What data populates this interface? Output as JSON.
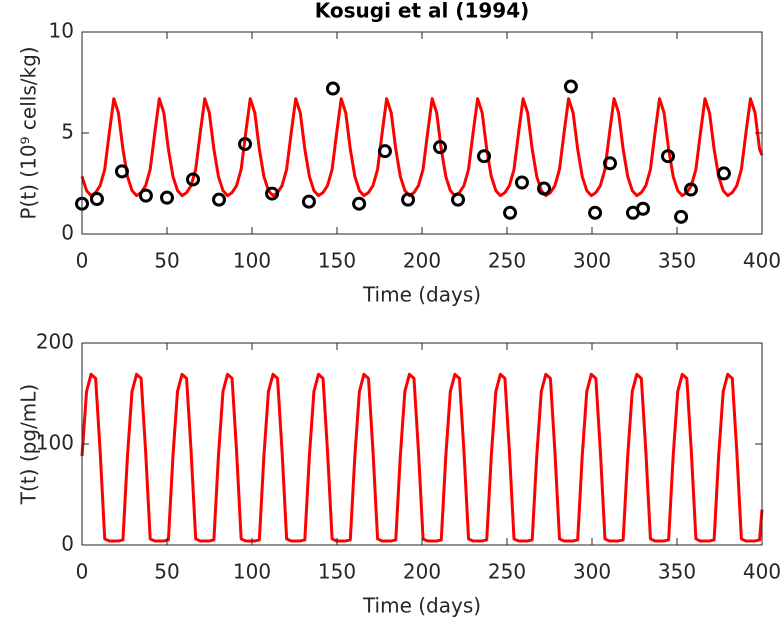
{
  "chart_data": [
    {
      "type": "line",
      "title": "Kosugi et al (1994)",
      "xlabel": "Time (days)",
      "ylabel": "P(t) (10⁹ cells/kg)",
      "xlim": [
        0,
        400
      ],
      "xticks": [
        0,
        50,
        100,
        150,
        200,
        250,
        300,
        350,
        400
      ],
      "ylim": [
        0,
        10
      ],
      "yticks": [
        0,
        5,
        10
      ],
      "x": [
        0,
        2.675,
        5.35,
        8.025,
        10.7,
        13.375,
        16.05,
        18.725,
        21.4,
        24.075,
        26.75,
        29.425,
        32.1,
        34.775,
        37.45,
        40.125,
        42.8,
        45.475,
        48.15,
        50.825,
        53.5,
        56.175,
        58.85,
        61.525,
        64.2,
        66.875,
        69.55,
        72.225,
        74.9,
        77.575,
        80.25,
        82.925,
        85.6,
        88.275,
        90.95,
        93.625,
        96.3,
        98.975,
        101.65,
        104.325,
        107,
        109.675,
        112.35,
        115.025,
        117.7,
        120.375,
        123.05,
        125.725,
        128.4,
        131.075,
        133.75,
        136.425,
        139.1,
        141.775,
        144.45,
        147.125,
        149.8,
        152.475,
        155.15,
        157.825,
        160.5,
        163.175,
        165.85,
        168.525,
        171.2,
        173.875,
        176.55,
        179.225,
        181.9,
        184.575,
        187.25,
        189.925,
        192.6,
        195.275,
        197.95,
        200.625,
        203.3,
        205.975,
        208.65,
        211.325,
        214,
        216.675,
        219.35,
        222.025,
        224.7,
        227.375,
        230.05,
        232.725,
        235.4,
        238.075,
        240.75,
        243.425,
        246.1,
        248.775,
        251.45,
        254.125,
        256.8,
        259.475,
        262.15,
        264.825,
        267.5,
        270.175,
        272.85,
        275.525,
        278.2,
        280.875,
        283.55,
        286.225,
        288.9,
        291.575,
        294.25,
        296.925,
        299.6,
        302.275,
        304.95,
        307.625,
        310.3,
        312.975,
        315.65,
        318.325,
        321,
        323.675,
        326.35,
        329.025,
        331.7,
        334.375,
        337.05,
        339.725,
        342.4,
        345.075,
        347.75,
        350.425,
        353.1,
        355.775,
        358.45,
        361.125,
        363.8,
        366.475,
        369.15,
        371.825,
        374.5,
        377.175,
        379.85,
        382.525,
        385.2,
        387.875,
        390.55,
        393.225,
        395.9,
        398.575,
        400
      ],
      "series": [
        {
          "color": "#ff0000",
          "values": [
            2.85,
            2.15,
            1.9,
            2.05,
            2.4,
            3.2,
            5.0,
            6.7,
            6.0,
            4.2,
            2.85,
            2.15,
            1.9,
            2.05,
            2.4,
            3.2,
            5.0,
            6.7,
            6.0,
            4.2,
            2.85,
            2.15,
            1.9,
            2.05,
            2.4,
            3.2,
            5.0,
            6.7,
            6.0,
            4.2,
            2.85,
            2.15,
            1.9,
            2.05,
            2.4,
            3.2,
            5.0,
            6.7,
            6.0,
            4.2,
            2.85,
            2.15,
            1.9,
            2.05,
            2.4,
            3.2,
            5.0,
            6.7,
            6.0,
            4.2,
            2.85,
            2.15,
            1.9,
            2.05,
            2.4,
            3.2,
            5.0,
            6.7,
            6.0,
            4.2,
            2.85,
            2.15,
            1.9,
            2.05,
            2.4,
            3.2,
            5.0,
            6.7,
            6.0,
            4.2,
            2.85,
            2.15,
            1.9,
            2.05,
            2.4,
            3.2,
            5.0,
            6.7,
            6.0,
            4.2,
            2.85,
            2.15,
            1.9,
            2.05,
            2.4,
            3.2,
            5.0,
            6.7,
            6.0,
            4.2,
            2.85,
            2.15,
            1.9,
            2.05,
            2.4,
            3.2,
            5.0,
            6.7,
            6.0,
            4.2,
            2.85,
            2.15,
            1.9,
            2.05,
            2.4,
            3.2,
            5.0,
            6.7,
            6.0,
            4.2,
            2.85,
            2.15,
            1.9,
            2.05,
            2.4,
            3.2,
            5.0,
            6.7,
            6.0,
            4.2,
            2.85,
            2.15,
            1.9,
            2.05,
            2.4,
            3.2,
            5.0,
            6.7,
            6.0,
            4.2,
            2.85,
            2.15,
            1.9,
            2.05,
            2.4,
            3.2,
            5.0,
            6.7,
            6.0,
            4.2,
            2.85,
            2.15,
            1.9,
            2.05,
            2.4,
            3.2,
            5.0,
            6.7,
            6.0,
            4.2,
            3.9
          ]
        },
        {
          "type": "scatter",
          "color": "#000000",
          "x": [
            0,
            8.8,
            23.5,
            37.6,
            50,
            65.3,
            80.6,
            95.9,
            111.8,
            133.5,
            147.6,
            163,
            178.2,
            191.8,
            210.6,
            221.2,
            236.5,
            251.8,
            258.8,
            271.8,
            287.6,
            301.8,
            310.6,
            324.1,
            330,
            344.7,
            352.4,
            358.2,
            377.6
          ],
          "values": [
            1.5,
            1.73,
            3.1,
            1.9,
            1.8,
            2.7,
            1.7,
            4.45,
            2.0,
            1.6,
            7.2,
            1.5,
            4.1,
            1.7,
            4.3,
            1.7,
            3.85,
            1.05,
            2.55,
            2.25,
            7.3,
            1.05,
            3.5,
            1.05,
            1.25,
            3.85,
            0.85,
            2.2,
            3.0
          ]
        }
      ]
    },
    {
      "type": "line",
      "xlabel": "Time (days)",
      "ylabel": "T(t) (pg/mL)",
      "xlim": [
        0,
        400
      ],
      "xticks": [
        0,
        50,
        100,
        150,
        200,
        250,
        300,
        350,
        400
      ],
      "ylim": [
        0,
        200
      ],
      "yticks": [
        0,
        100,
        200
      ],
      "x": [
        0,
        2.675,
        5.35,
        8.025,
        10.7,
        13.375,
        16.05,
        18.725,
        21.4,
        24.075,
        26.75,
        29.425,
        32.1,
        34.775,
        37.45,
        40.125,
        42.8,
        45.475,
        48.15,
        50.825,
        53.5,
        56.175,
        58.85,
        61.525,
        64.2,
        66.875,
        69.55,
        72.225,
        74.9,
        77.575,
        80.25,
        82.925,
        85.6,
        88.275,
        90.95,
        93.625,
        96.3,
        98.975,
        101.65,
        104.325,
        107,
        109.675,
        112.35,
        115.025,
        117.7,
        120.375,
        123.05,
        125.725,
        128.4,
        131.075,
        133.75,
        136.425,
        139.1,
        141.775,
        144.45,
        147.125,
        149.8,
        152.475,
        155.15,
        157.825,
        160.5,
        163.175,
        165.85,
        168.525,
        171.2,
        173.875,
        176.55,
        179.225,
        181.9,
        184.575,
        187.25,
        189.925,
        192.6,
        195.275,
        197.95,
        200.625,
        203.3,
        205.975,
        208.65,
        211.325,
        214,
        216.675,
        219.35,
        222.025,
        224.7,
        227.375,
        230.05,
        232.725,
        235.4,
        238.075,
        240.75,
        243.425,
        246.1,
        248.775,
        251.45,
        254.125,
        256.8,
        259.475,
        262.15,
        264.825,
        267.5,
        270.175,
        272.85,
        275.525,
        278.2,
        280.875,
        283.55,
        286.225,
        288.9,
        291.575,
        294.25,
        296.925,
        299.6,
        302.275,
        304.95,
        307.625,
        310.3,
        312.975,
        315.65,
        318.325,
        321,
        323.675,
        326.35,
        329.025,
        331.7,
        334.375,
        337.05,
        339.725,
        342.4,
        345.075,
        347.75,
        350.425,
        353.1,
        355.775,
        358.45,
        361.125,
        363.8,
        366.475,
        369.15,
        371.825,
        374.5,
        377.175,
        379.85,
        382.525,
        385.2,
        387.875,
        390.55,
        393.225,
        395.9,
        398.575,
        400
      ],
      "series": [
        {
          "color": "#ff0000",
          "values": [
            88,
            152,
            169,
            165,
            92,
            6,
            4,
            4,
            4,
            5,
            88,
            152,
            169,
            165,
            92,
            6,
            4,
            4,
            4,
            5,
            88,
            152,
            169,
            165,
            92,
            6,
            4,
            4,
            4,
            5,
            88,
            152,
            169,
            165,
            92,
            6,
            4,
            4,
            4,
            5,
            88,
            152,
            169,
            165,
            92,
            6,
            4,
            4,
            4,
            5,
            88,
            152,
            169,
            165,
            92,
            6,
            4,
            4,
            4,
            5,
            88,
            152,
            169,
            165,
            92,
            6,
            4,
            4,
            4,
            5,
            88,
            152,
            169,
            165,
            92,
            6,
            4,
            4,
            4,
            5,
            88,
            152,
            169,
            165,
            92,
            6,
            4,
            4,
            4,
            5,
            88,
            152,
            169,
            165,
            92,
            6,
            4,
            4,
            4,
            5,
            88,
            152,
            169,
            165,
            92,
            6,
            4,
            4,
            4,
            5,
            88,
            152,
            169,
            165,
            92,
            6,
            4,
            4,
            4,
            5,
            88,
            152,
            169,
            165,
            92,
            6,
            4,
            4,
            4,
            5,
            88,
            152,
            169,
            165,
            92,
            6,
            4,
            4,
            4,
            5,
            88,
            152,
            169,
            165,
            92,
            6,
            4,
            4,
            4,
            5,
            35
          ]
        }
      ]
    }
  ]
}
